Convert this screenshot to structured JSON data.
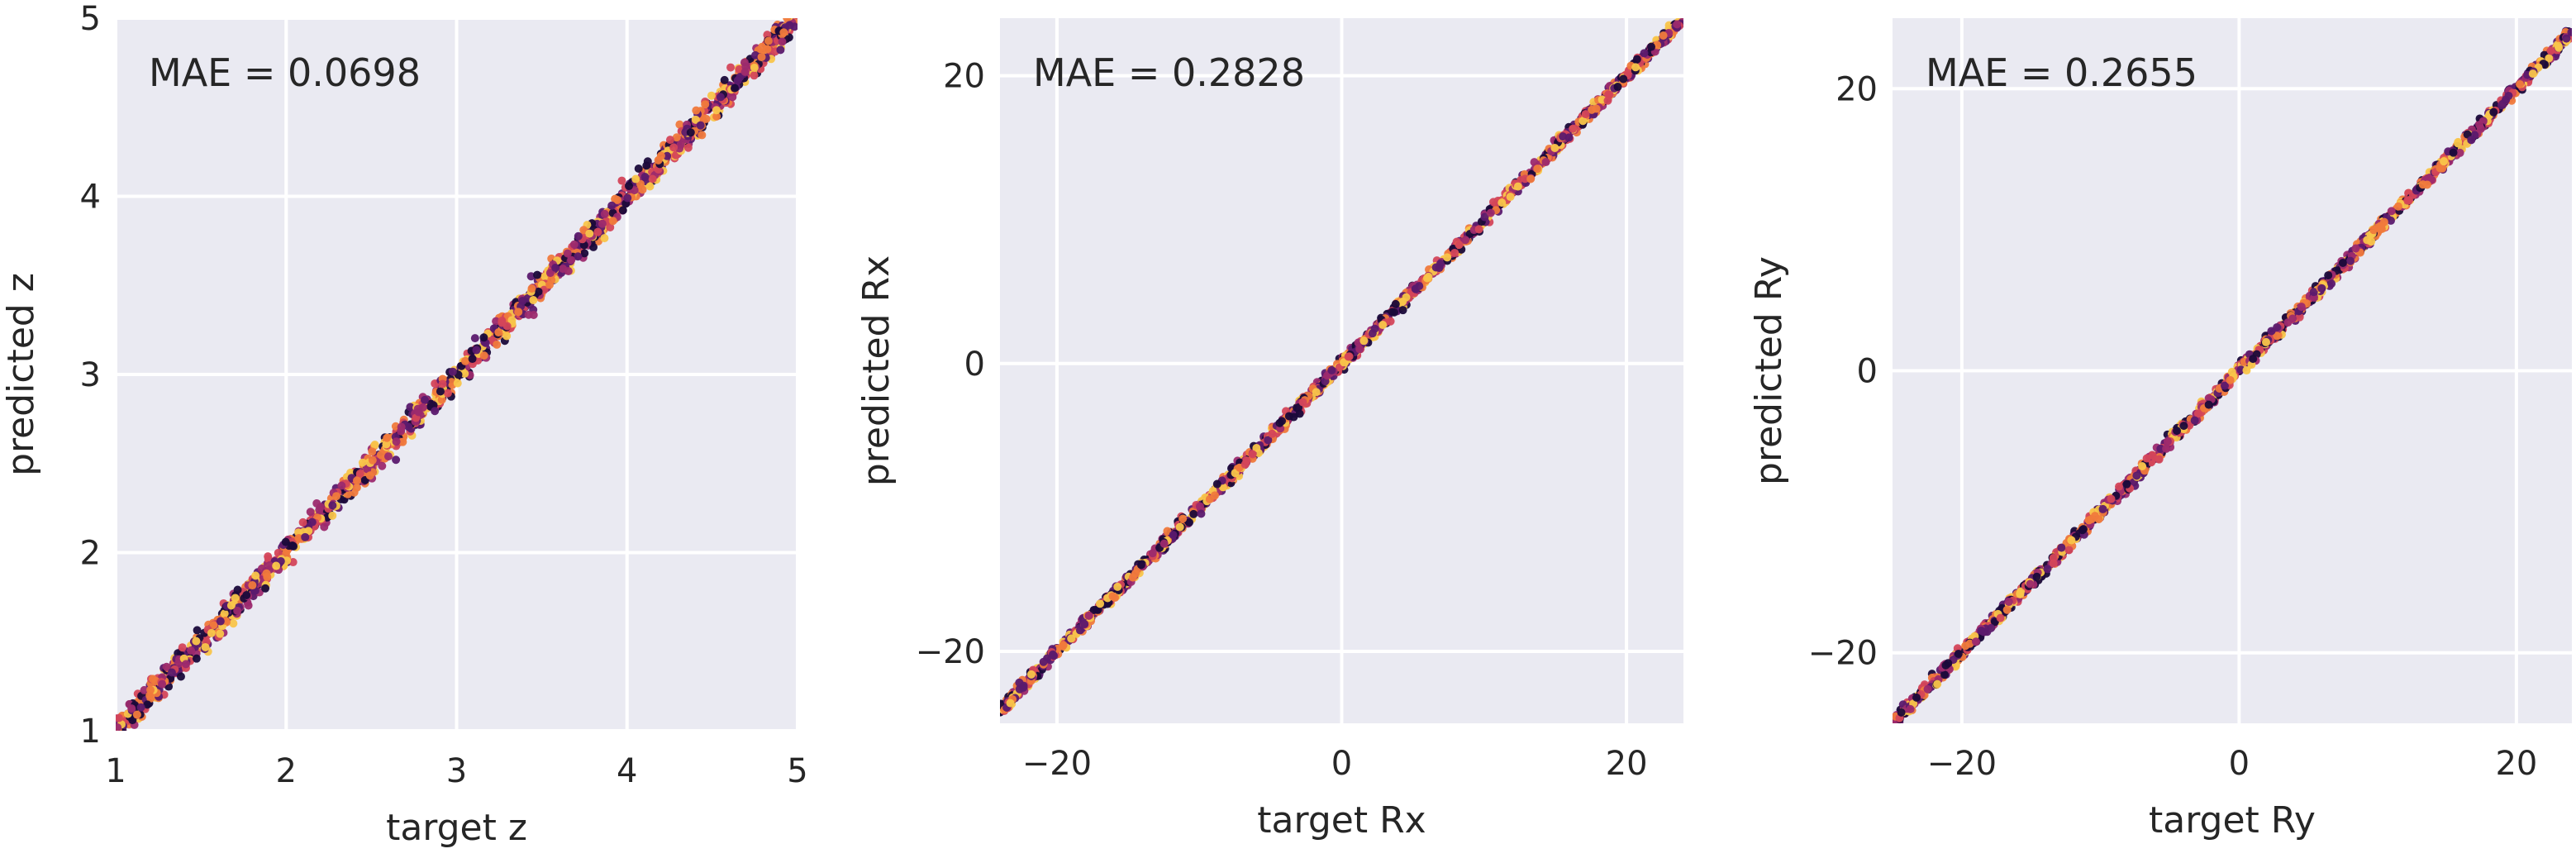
{
  "chart_data": [
    {
      "type": "scatter",
      "xlabel": "target z",
      "ylabel": "predicted z",
      "annotation": "MAE = 0.0698",
      "xlim": [
        1,
        5
      ],
      "ylim": [
        1,
        5
      ],
      "xticks": [
        1,
        2,
        3,
        4,
        5
      ],
      "yticks": [
        1,
        2,
        3,
        4,
        5
      ],
      "xtick_labels": [
        "1",
        "2",
        "3",
        "4",
        "5"
      ],
      "ytick_labels": [
        "1",
        "2",
        "3",
        "4",
        "5"
      ],
      "grid": true,
      "series": [
        {
          "x": [
            1.05,
            1.15,
            1.25,
            1.4,
            1.6,
            1.8,
            2.0,
            2.2,
            2.4,
            2.6,
            2.8,
            3.0,
            3.2,
            3.4,
            3.6,
            3.8,
            4.0,
            4.2,
            4.4,
            4.6,
            4.8,
            4.95
          ],
          "y": [
            1.08,
            1.14,
            1.27,
            1.38,
            1.62,
            1.79,
            2.02,
            2.18,
            2.41,
            2.63,
            2.78,
            3.01,
            3.22,
            3.38,
            3.6,
            3.83,
            3.99,
            4.21,
            4.38,
            4.62,
            4.8,
            4.93
          ]
        }
      ],
      "point_density": "dense along y = x",
      "colormap": [
        "#1a0a3a",
        "#5b1a6e",
        "#9c2a6e",
        "#d4465a",
        "#f07a3c",
        "#f9c54a"
      ]
    },
    {
      "type": "scatter",
      "xlabel": "target Rx",
      "ylabel": "predicted Rx",
      "annotation": "MAE = 0.2828",
      "xlim": [
        -24,
        24
      ],
      "ylim": [
        -25,
        24
      ],
      "xticks": [
        -20,
        0,
        20
      ],
      "yticks": [
        -20,
        0,
        20
      ],
      "xtick_labels": [
        "−20",
        "0",
        "20"
      ],
      "ytick_labels": [
        "−20",
        "0",
        "20"
      ],
      "grid": true,
      "series": [
        {
          "x": [
            -24,
            -20,
            -16,
            -12,
            -8,
            -4,
            0,
            4,
            8,
            12,
            16,
            20,
            23.5
          ],
          "y": [
            -24.2,
            -19.8,
            -16.1,
            -12.2,
            -7.9,
            -4.1,
            0.1,
            4.0,
            8.2,
            11.9,
            16.1,
            20.0,
            23.6
          ]
        }
      ],
      "point_density": "dense along y = x",
      "colormap": [
        "#1a0a3a",
        "#5b1a6e",
        "#9c2a6e",
        "#d4465a",
        "#f07a3c",
        "#f9c54a"
      ]
    },
    {
      "type": "scatter",
      "xlabel": "target Ry",
      "ylabel": "predicted Ry",
      "annotation": "MAE = 0.2655",
      "xlim": [
        -25,
        24
      ],
      "ylim": [
        -25,
        25
      ],
      "xticks": [
        -20,
        0,
        20
      ],
      "yticks": [
        -20,
        0,
        20
      ],
      "xtick_labels": [
        "−20",
        "0",
        "20"
      ],
      "ytick_labels": [
        "−20",
        "0",
        "20"
      ],
      "grid": true,
      "series": [
        {
          "x": [
            -24.5,
            -20,
            -16,
            -12,
            -8,
            -4,
            0,
            4,
            8,
            12,
            16,
            20,
            23.5
          ],
          "y": [
            -24.6,
            -19.9,
            -16.2,
            -11.9,
            -8.1,
            -3.9,
            0.0,
            4.1,
            7.9,
            12.1,
            15.9,
            20.1,
            23.7
          ]
        }
      ],
      "point_density": "dense along y = x",
      "colormap": [
        "#1a0a3a",
        "#5b1a6e",
        "#9c2a6e",
        "#d4465a",
        "#f07a3c",
        "#f9c54a"
      ]
    }
  ],
  "style": {
    "panel_background": "#eaeaf2",
    "grid_color": "#ffffff",
    "text_color": "#262626"
  }
}
